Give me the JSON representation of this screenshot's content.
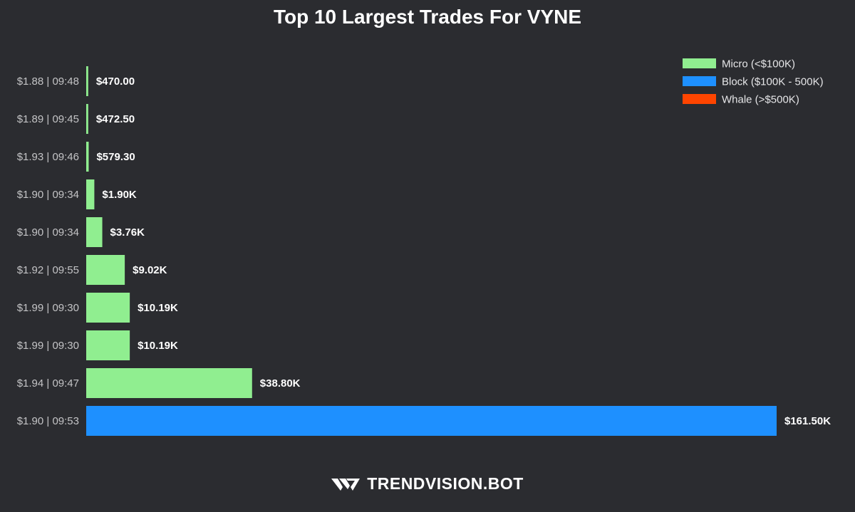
{
  "chart_data": {
    "type": "bar",
    "orientation": "horizontal",
    "title": "Top 10 Largest Trades For VYNE",
    "categories": [
      "$1.88 | 09:48",
      "$1.89 | 09:45",
      "$1.93 | 09:46",
      "$1.90 | 09:34",
      "$1.90 | 09:34",
      "$1.92 | 09:55",
      "$1.99 | 09:30",
      "$1.99 | 09:30",
      "$1.94 | 09:47",
      "$1.90 | 09:53"
    ],
    "values": [
      470.0,
      472.5,
      579.3,
      1900,
      3760,
      9020,
      10190,
      10190,
      38800,
      161500
    ],
    "value_labels": [
      "$470.00",
      "$472.50",
      "$579.30",
      "$1.90K",
      "$3.76K",
      "$9.02K",
      "$10.19K",
      "$10.19K",
      "$38.80K",
      "$161.50K"
    ],
    "bar_tiers": [
      "micro",
      "micro",
      "micro",
      "micro",
      "micro",
      "micro",
      "micro",
      "micro",
      "micro",
      "block"
    ],
    "xlim": [
      0,
      161500
    ],
    "xlabel": "",
    "ylabel": "",
    "grid": false,
    "legend_position": "top-right",
    "legend": [
      {
        "key": "micro",
        "label": "Micro (<$100K)",
        "color": "#90ee90"
      },
      {
        "key": "block",
        "label": "Block ($100K - 500K)",
        "color": "#1e90ff"
      },
      {
        "key": "whale",
        "label": "Whale (>$500K)",
        "color": "#ff4500"
      }
    ]
  },
  "branding": {
    "text": "TRENDVISION.BOT",
    "logo_icon": "tv-chevron-logo"
  }
}
